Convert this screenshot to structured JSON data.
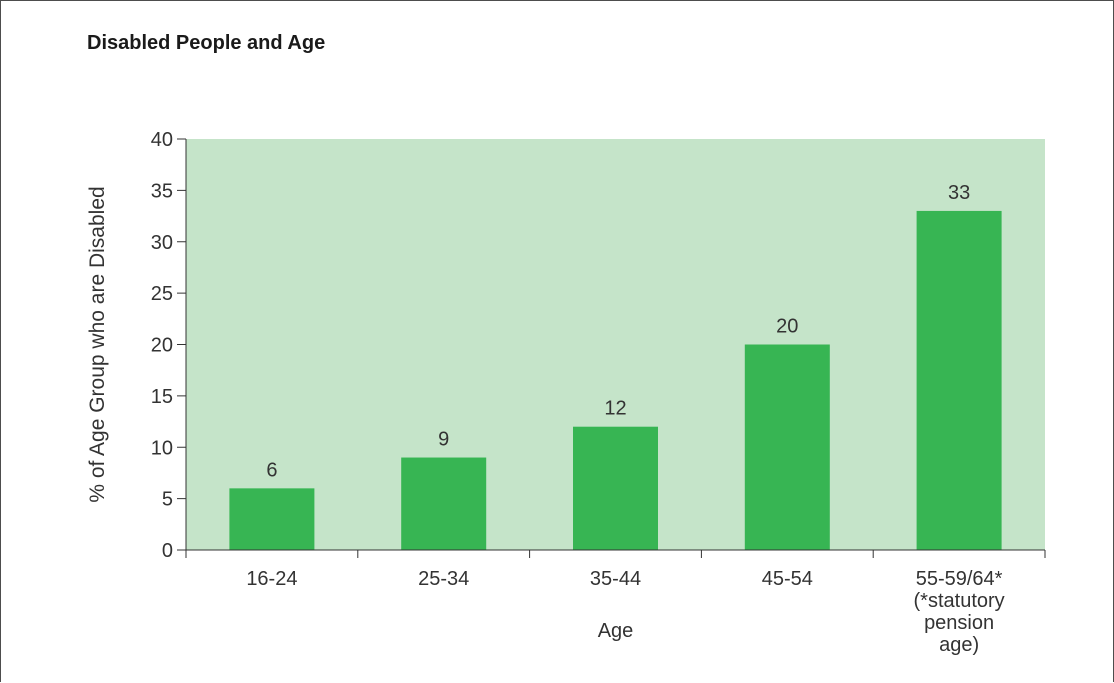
{
  "chart_data": {
    "type": "bar",
    "title": "Disabled People and Age",
    "xlabel": "Age",
    "ylabel": "% of Age Group who are Disabled",
    "categories": [
      [
        "16-24"
      ],
      [
        "25-34"
      ],
      [
        "35-44"
      ],
      [
        "45-54"
      ],
      [
        "55-59/64*",
        "(*statutory",
        "pension",
        "age)"
      ]
    ],
    "values": [
      6,
      9,
      12,
      20,
      33
    ],
    "data_labels": [
      "6",
      "9",
      "12",
      "20",
      "33"
    ],
    "ylim": [
      0,
      40
    ],
    "yticks": [
      "0",
      "5",
      "10",
      "15",
      "20",
      "25",
      "30",
      "35",
      "40"
    ],
    "grid": false,
    "legend": "none",
    "colors": {
      "bar": "#37b553",
      "plot_background": "#c5e4c9",
      "axis": "#333333",
      "text": "#333333"
    }
  }
}
